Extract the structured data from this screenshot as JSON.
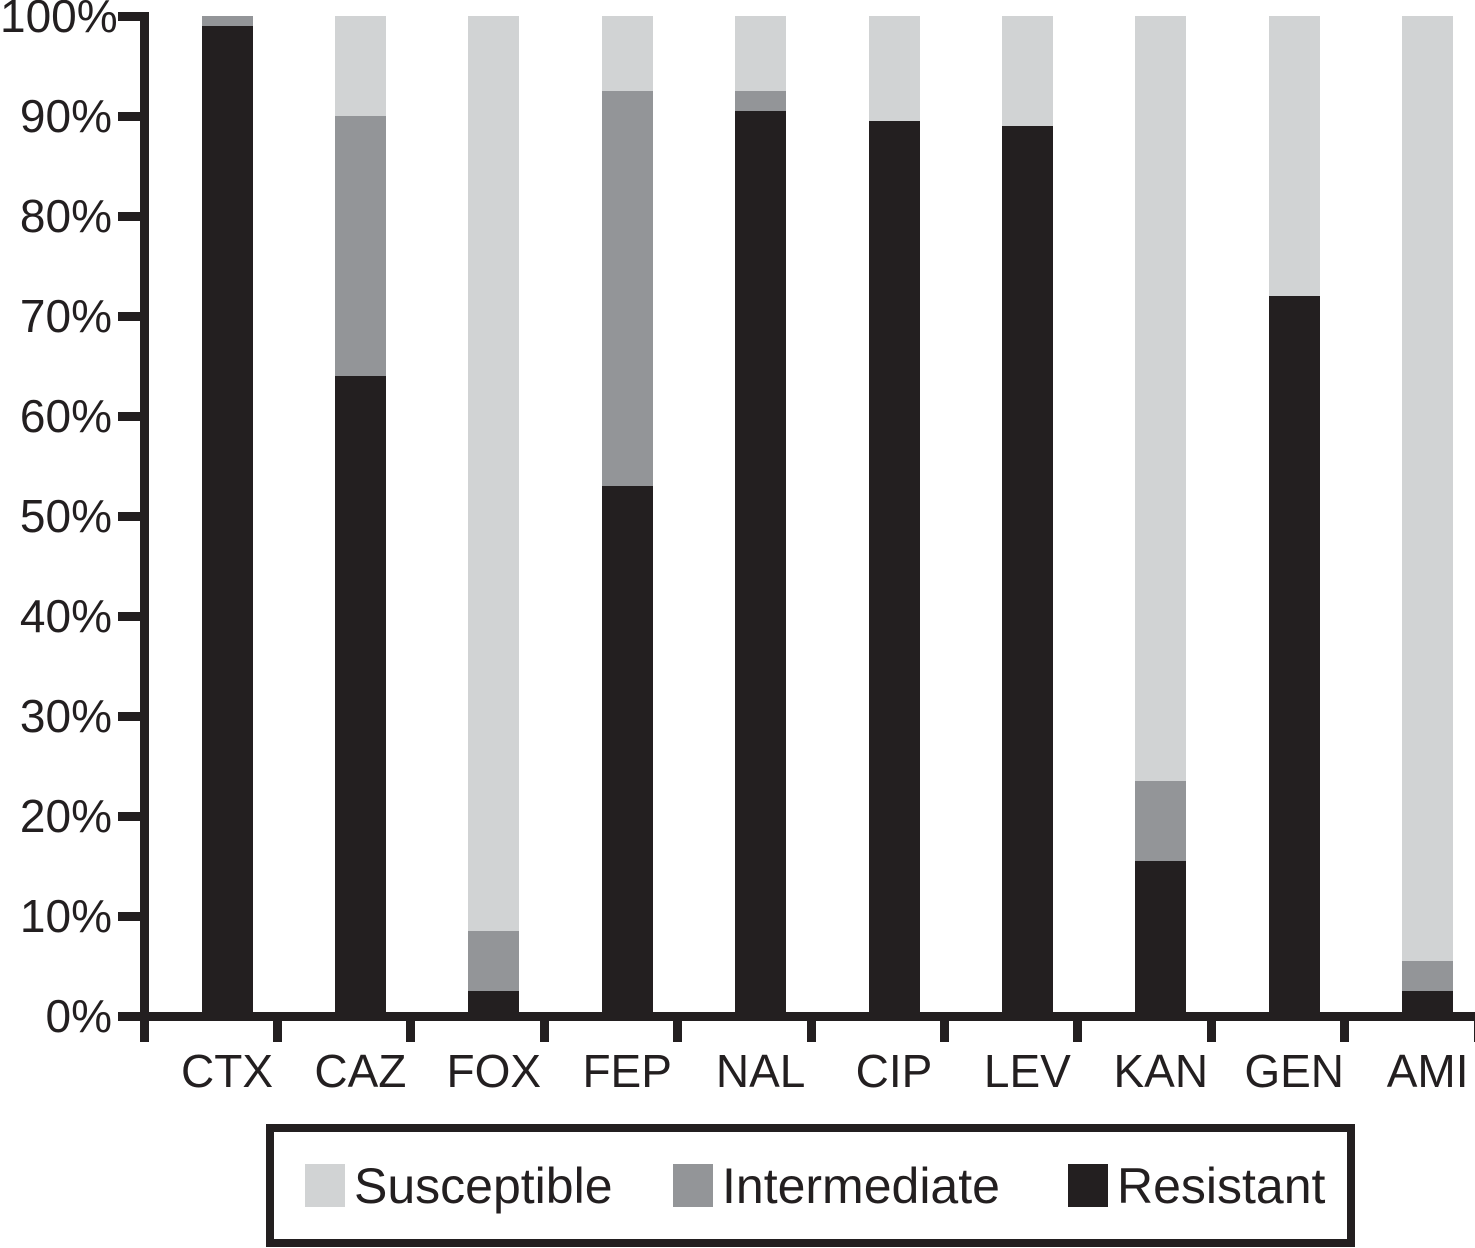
{
  "chart_data": {
    "type": "bar",
    "stacked": true,
    "percent_axis": true,
    "title": "",
    "categories": [
      "CTX",
      "CAZ",
      "FOX",
      "FEP",
      "NAL",
      "CIP",
      "LEV",
      "KAN",
      "GEN",
      "AMI"
    ],
    "series": [
      {
        "name": "Susceptible",
        "color": "#d1d3d4",
        "values": [
          0,
          10,
          91.5,
          7.5,
          7.5,
          10.5,
          11,
          76.5,
          28,
          94.5
        ]
      },
      {
        "name": "Intermediate",
        "color": "#939598",
        "values": [
          1,
          26,
          6,
          39.5,
          2,
          0,
          0,
          8,
          0,
          3
        ]
      },
      {
        "name": "Resistant",
        "color": "#231f20",
        "values": [
          99,
          64,
          2.5,
          53,
          90.5,
          89.5,
          89,
          15.5,
          72,
          2.5
        ]
      }
    ],
    "y_axis": {
      "min": 0,
      "max": 100,
      "tick_step": 10,
      "tick_labels": [
        "0%",
        "10%",
        "20%",
        "30%",
        "40%",
        "50%",
        "60%",
        "70%",
        "80%",
        "90%",
        "100%"
      ]
    },
    "legend": {
      "position": "bottom",
      "entries": [
        "Susceptible",
        "Intermediate",
        "Resistant"
      ]
    },
    "grid": false
  },
  "colors": {
    "axis": "#231f20",
    "text": "#231f20",
    "background": "#ffffff"
  }
}
